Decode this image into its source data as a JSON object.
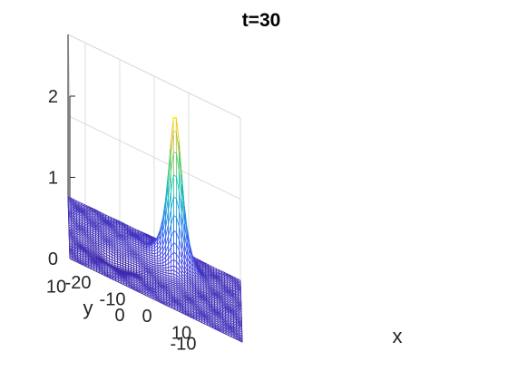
{
  "chart_data": {
    "type": "surface",
    "title": "t=30",
    "xlabel": "x",
    "ylabel": "y",
    "zlabel": "",
    "xlim": [
      -25,
      25
    ],
    "ylim": [
      -12,
      12
    ],
    "zlim": [
      0,
      2
    ],
    "x_ticks": [
      -20,
      -10,
      0,
      10
    ],
    "x_tick_labels": [
      "-20",
      "-10",
      "0",
      "10"
    ],
    "y_ticks": [
      -10,
      0,
      10
    ],
    "y_tick_labels": [
      "-10",
      "0",
      "10"
    ],
    "z_ticks": [
      0,
      1,
      2
    ],
    "z_tick_labels": [
      "0",
      "1",
      "2"
    ],
    "grid": true,
    "colormap": "parula",
    "peak": {
      "x": 6,
      "y": 6,
      "z": 1.85
    },
    "wake_trough": {
      "x": -12,
      "y": -4,
      "z": -0.08
    }
  }
}
